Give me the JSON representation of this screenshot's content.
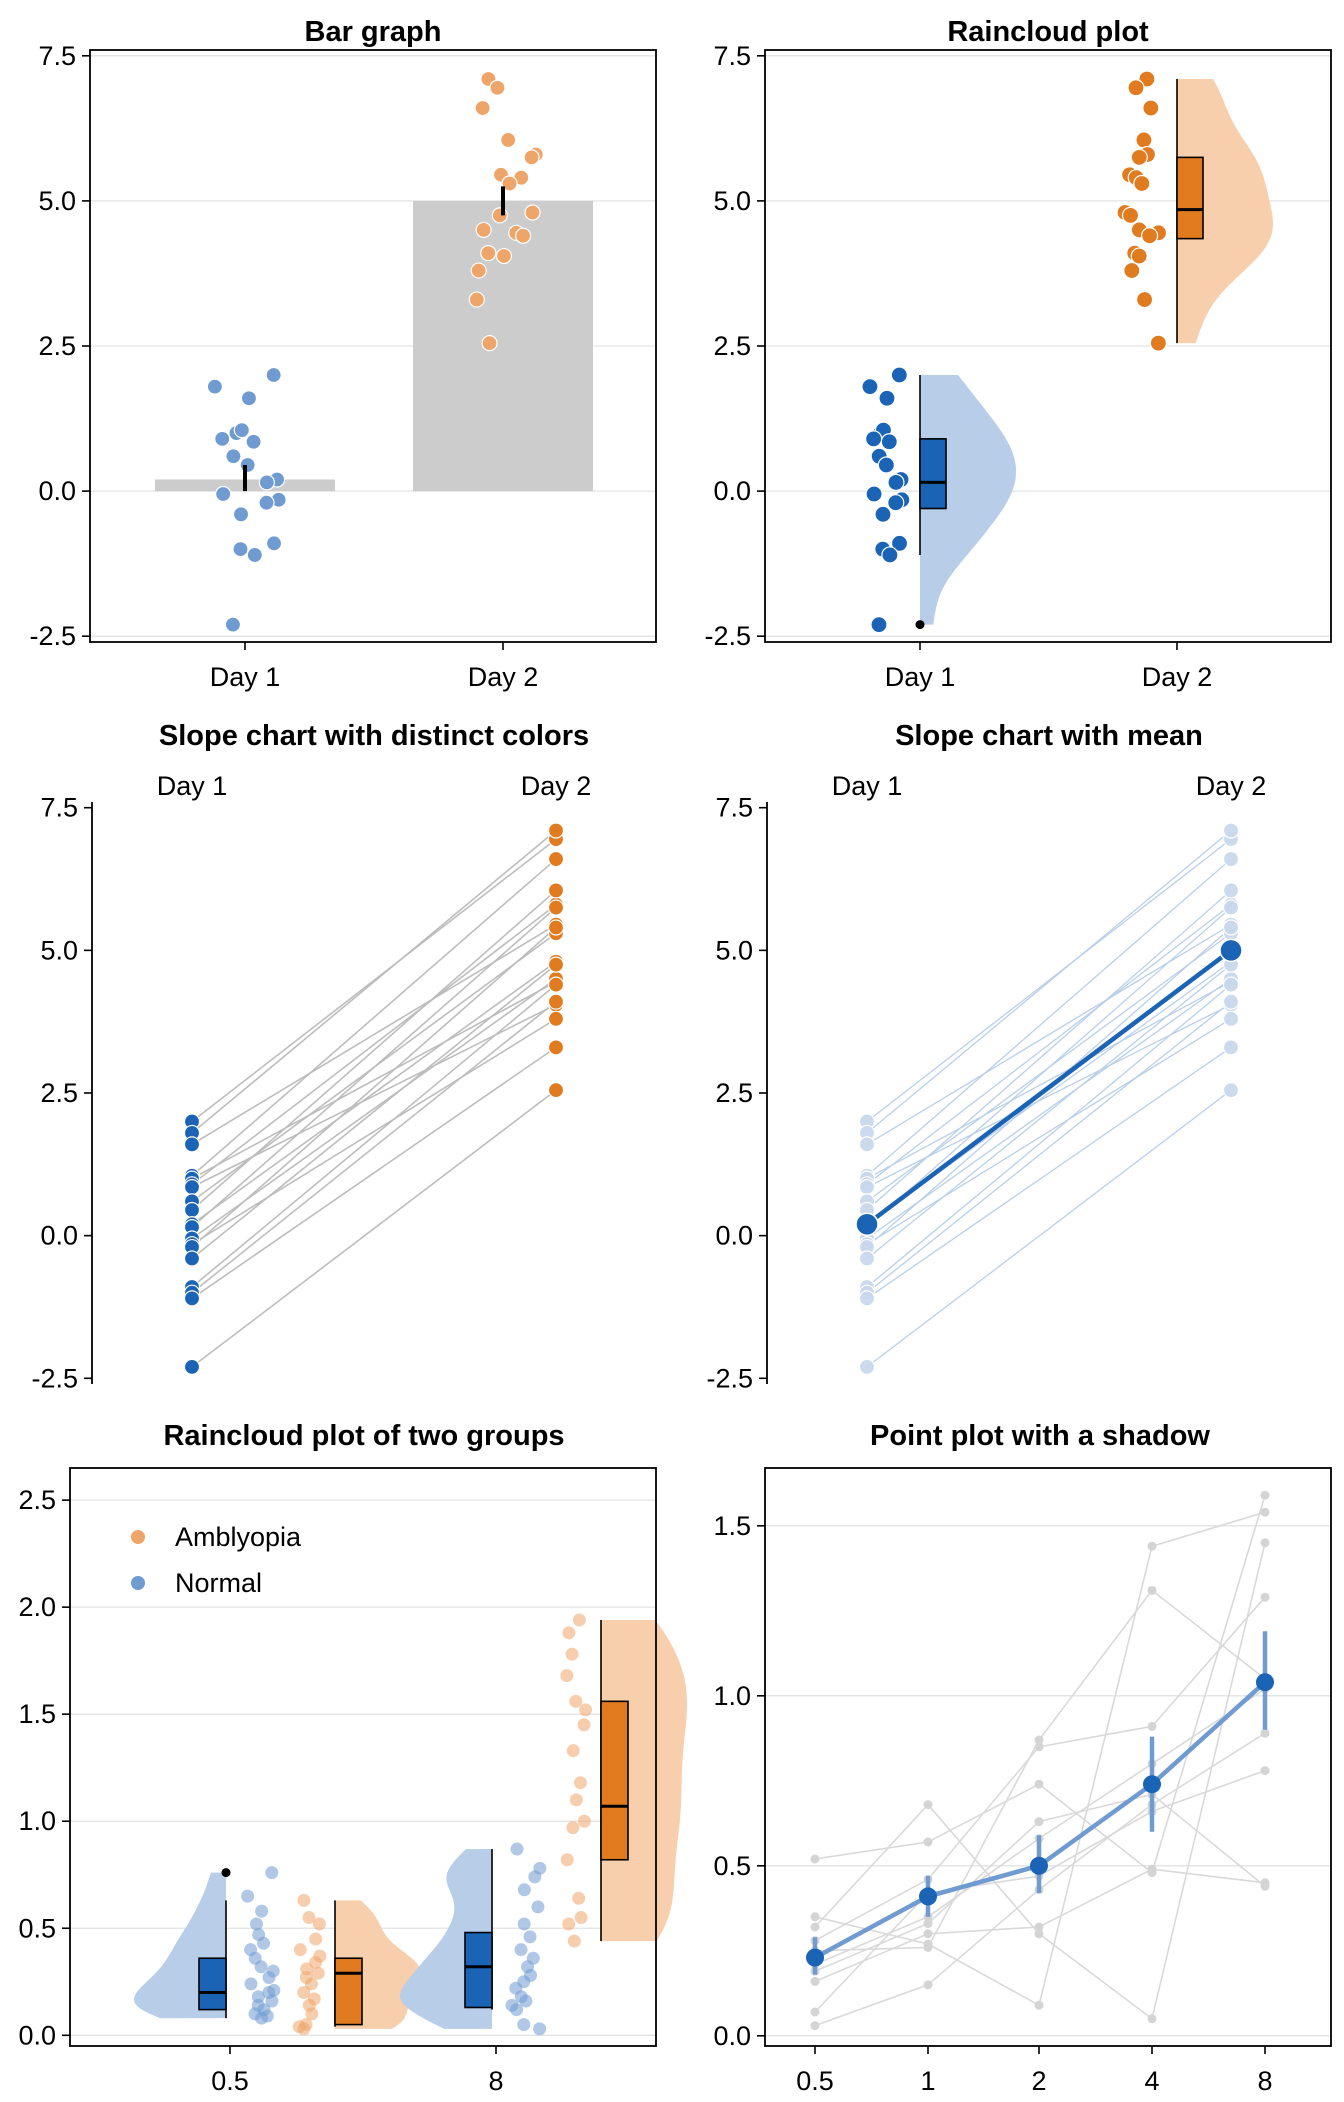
{
  "colors": {
    "blue": "#1a63b5",
    "blue_light": "#6f9bd1",
    "blue_fill": "#b7cde8",
    "orange": "#e07b20",
    "orange_light": "#eea56a",
    "orange_fill": "#f7cfac",
    "bar_gray": "#cccccc",
    "line_gray": "#bdbdbd",
    "grid": "#e3e3e3"
  },
  "chart_data": [
    {
      "type": "bar",
      "title": "Bar graph",
      "categories": [
        "Day 1",
        "Day 2"
      ],
      "values": [
        0.2,
        5.0
      ],
      "error": [
        [
          0.0,
          0.45
        ],
        [
          4.75,
          5.25
        ]
      ],
      "ylim": [
        -2.6,
        7.6
      ],
      "yticks": [
        -2.5,
        0.0,
        2.5,
        5.0,
        7.5
      ],
      "ytick_labels": [
        "-2.5",
        "0.0",
        "2.5",
        "5.0",
        "7.5"
      ],
      "points": {
        "Day 1": [
          2.0,
          1.8,
          1.6,
          1.0,
          1.05,
          0.85,
          0.9,
          0.6,
          0.45,
          0.2,
          0.15,
          -0.05,
          -0.15,
          -0.2,
          -0.4,
          -0.9,
          -1.0,
          -1.1,
          -2.3
        ],
        "Day 2": [
          7.1,
          6.95,
          6.6,
          6.05,
          5.8,
          5.75,
          5.45,
          5.4,
          5.3,
          4.8,
          4.75,
          4.5,
          4.45,
          4.4,
          4.1,
          4.05,
          3.8,
          3.3,
          2.55
        ]
      }
    },
    {
      "type": "raincloud",
      "title": "Raincloud plot",
      "categories": [
        "Day 1",
        "Day 2"
      ],
      "ylim": [
        -2.6,
        7.6
      ],
      "yticks": [
        -2.5,
        0.0,
        2.5,
        5.0,
        7.5
      ],
      "ytick_labels": [
        "-2.5",
        "0.0",
        "2.5",
        "5.0",
        "7.5"
      ],
      "boxplots": [
        {
          "min": -1.1,
          "q1": -0.3,
          "median": 0.15,
          "q3": 0.9,
          "max": 2.0,
          "outliers": [
            -2.3
          ]
        },
        {
          "min": 2.55,
          "q1": 4.35,
          "median": 4.85,
          "q3": 5.75,
          "max": 7.1,
          "outliers": []
        }
      ],
      "points": {
        "Day 1": [
          2.0,
          1.8,
          1.6,
          1.0,
          1.05,
          0.85,
          0.9,
          0.6,
          0.45,
          0.2,
          0.15,
          -0.05,
          -0.15,
          -0.2,
          -0.4,
          -0.9,
          -1.0,
          -1.1,
          -2.3
        ],
        "Day 2": [
          7.1,
          6.95,
          6.6,
          6.05,
          5.8,
          5.75,
          5.45,
          5.4,
          5.3,
          4.8,
          4.75,
          4.5,
          4.45,
          4.4,
          4.1,
          4.05,
          3.8,
          3.3,
          2.55
        ]
      }
    },
    {
      "type": "line",
      "title": "Slope chart with distinct colors",
      "categories": [
        "Day 1",
        "Day 2"
      ],
      "ylim": [
        -2.6,
        7.6
      ],
      "yticks": [
        -2.5,
        0.0,
        2.5,
        5.0,
        7.5
      ],
      "ytick_labels": [
        "-2.5",
        "0.0",
        "2.5",
        "5.0",
        "7.5"
      ],
      "pairs": [
        [
          2.0,
          6.95
        ],
        [
          1.8,
          7.1
        ],
        [
          1.6,
          5.45
        ],
        [
          1.05,
          6.6
        ],
        [
          1.0,
          4.45
        ],
        [
          0.9,
          5.8
        ],
        [
          0.85,
          4.05
        ],
        [
          0.6,
          5.3
        ],
        [
          0.45,
          6.05
        ],
        [
          0.2,
          4.8
        ],
        [
          0.15,
          5.75
        ],
        [
          -0.05,
          4.5
        ],
        [
          -0.15,
          3.8
        ],
        [
          -0.2,
          5.4
        ],
        [
          -0.4,
          4.75
        ],
        [
          -0.9,
          4.4
        ],
        [
          -1.0,
          4.1
        ],
        [
          -1.1,
          3.3
        ],
        [
          -2.3,
          2.55
        ]
      ]
    },
    {
      "type": "line",
      "title": "Slope chart with mean",
      "categories": [
        "Day 1",
        "Day 2"
      ],
      "ylim": [
        -2.6,
        7.6
      ],
      "yticks": [
        -2.5,
        0.0,
        2.5,
        5.0,
        7.5
      ],
      "ytick_labels": [
        "-2.5",
        "0.0",
        "2.5",
        "5.0",
        "7.5"
      ],
      "means": [
        0.2,
        5.0
      ],
      "pairs": [
        [
          2.0,
          6.95
        ],
        [
          1.8,
          7.1
        ],
        [
          1.6,
          5.45
        ],
        [
          1.05,
          6.6
        ],
        [
          1.0,
          4.45
        ],
        [
          0.9,
          5.8
        ],
        [
          0.85,
          4.05
        ],
        [
          0.6,
          5.3
        ],
        [
          0.45,
          6.05
        ],
        [
          0.2,
          4.8
        ],
        [
          0.15,
          5.75
        ],
        [
          -0.05,
          4.5
        ],
        [
          -0.15,
          3.8
        ],
        [
          -0.2,
          5.4
        ],
        [
          -0.4,
          4.75
        ],
        [
          -0.9,
          4.4
        ],
        [
          -1.0,
          4.1
        ],
        [
          -1.1,
          3.3
        ],
        [
          -2.3,
          2.55
        ]
      ]
    },
    {
      "type": "raincloud",
      "title": "Raincloud plot of two groups",
      "categories": [
        "0.5",
        "8"
      ],
      "ylim": [
        -0.05,
        2.65
      ],
      "yticks": [
        0.0,
        0.5,
        1.0,
        1.5,
        2.0,
        2.5
      ],
      "ytick_labels": [
        "0.0",
        "0.5",
        "1.0",
        "1.5",
        "2.0",
        "2.5"
      ],
      "legend": {
        "position": "top-left",
        "entries": [
          "Amblyopia",
          "Normal"
        ]
      },
      "series": [
        {
          "name": "Normal",
          "boxplots": [
            {
              "min": 0.08,
              "q1": 0.12,
              "median": 0.2,
              "q3": 0.36,
              "max": 0.63,
              "outliers": [
                0.76
              ]
            },
            {
              "min": 0.12,
              "q1": 0.13,
              "median": 0.32,
              "q3": 0.48,
              "max": 0.87,
              "outliers": []
            }
          ],
          "points": [
            [
              0.76,
              0.65,
              0.58,
              0.52,
              0.47,
              0.43,
              0.4,
              0.36,
              0.32,
              0.3,
              0.27,
              0.24,
              0.21,
              0.2,
              0.18,
              0.16,
              0.14,
              0.12,
              0.1,
              0.09,
              0.08
            ],
            [
              0.87,
              0.78,
              0.74,
              0.68,
              0.6,
              0.52,
              0.46,
              0.4,
              0.36,
              0.32,
              0.28,
              0.25,
              0.22,
              0.18,
              0.16,
              0.14,
              0.12,
              0.05,
              0.03
            ]
          ]
        },
        {
          "name": "Amblyopia",
          "boxplots": [
            {
              "min": 0.04,
              "q1": 0.05,
              "median": 0.29,
              "q3": 0.36,
              "max": 0.63,
              "outliers": []
            },
            {
              "min": 0.44,
              "q1": 0.82,
              "median": 1.07,
              "q3": 1.56,
              "max": 1.94,
              "outliers": []
            }
          ],
          "points": [
            [
              0.63,
              0.55,
              0.52,
              0.45,
              0.4,
              0.37,
              0.34,
              0.31,
              0.29,
              0.27,
              0.24,
              0.2,
              0.17,
              0.14,
              0.1,
              0.05,
              0.04,
              0.03
            ],
            [
              1.94,
              1.88,
              1.78,
              1.68,
              1.56,
              1.52,
              1.45,
              1.33,
              1.18,
              1.1,
              1.0,
              0.97,
              0.82,
              0.64,
              0.55,
              0.52,
              0.44
            ]
          ]
        }
      ]
    },
    {
      "type": "line",
      "title": "Point plot with a shadow",
      "categories": [
        "0.5",
        "1",
        "2",
        "4",
        "8"
      ],
      "ylim": [
        -0.03,
        1.67
      ],
      "yticks": [
        0.0,
        0.5,
        1.0,
        1.5
      ],
      "ytick_labels": [
        "0.0",
        "0.5",
        "1.0",
        "1.5"
      ],
      "means": [
        0.23,
        0.41,
        0.5,
        0.74,
        1.04
      ],
      "error": [
        [
          0.18,
          0.29
        ],
        [
          0.35,
          0.47
        ],
        [
          0.42,
          0.59
        ],
        [
          0.6,
          0.88
        ],
        [
          0.9,
          1.19
        ]
      ],
      "subjects": [
        [
          0.52,
          0.57,
          0.74,
          0.48,
          1.59
        ],
        [
          0.35,
          0.27,
          0.09,
          1.44,
          1.54
        ],
        [
          0.32,
          0.68,
          0.3,
          0.05,
          1.45
        ],
        [
          0.28,
          0.46,
          0.85,
          0.91,
          1.29
        ],
        [
          0.25,
          0.26,
          0.87,
          1.31,
          1.05
        ],
        [
          0.03,
          0.15,
          0.43,
          0.68,
          0.89
        ],
        [
          0.07,
          0.42,
          0.47,
          0.66,
          0.78
        ],
        [
          0.19,
          0.33,
          0.63,
          0.71,
          0.44
        ],
        [
          0.16,
          0.3,
          0.32,
          0.49,
          0.45
        ],
        [
          0.21,
          0.35,
          0.58,
          0.8,
          1.02
        ]
      ]
    }
  ]
}
